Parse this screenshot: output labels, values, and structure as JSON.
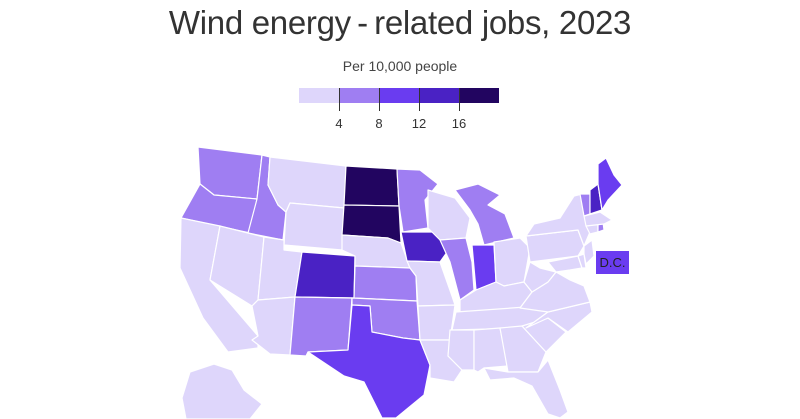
{
  "title": "Wind energy - related jobs, 2023",
  "subtitle": "Per 10,000 people",
  "colors": {
    "bin1": "#ded6fb",
    "bin2": "#9f7ef2",
    "bin3": "#6a3cf0",
    "bin4": "#4a22c4",
    "bin5": "#220560"
  },
  "legend": {
    "tick_labels": [
      "4",
      "8",
      "12",
      "16"
    ],
    "thresholds": [
      4,
      8,
      12,
      16
    ]
  },
  "dc_label": "D.C.",
  "dc_bin": "bin3",
  "state_bins": {
    "WA": "bin2",
    "OR": "bin2",
    "ID": "bin2",
    "MT": "bin1",
    "WY": "bin1",
    "ND": "bin5",
    "SD": "bin5",
    "NE": "bin1",
    "KS": "bin2",
    "OK": "bin2",
    "TX": "bin3",
    "NM": "bin2",
    "CO": "bin4",
    "UT": "bin1",
    "NV": "bin1",
    "CA": "bin1",
    "AZ": "bin1",
    "MN": "bin2",
    "IA": "bin4",
    "MO": "bin1",
    "AR": "bin1",
    "LA": "bin1",
    "WI": "bin1",
    "IL": "bin2",
    "MI": "bin2",
    "IN": "bin3",
    "OH": "bin1",
    "KY": "bin1",
    "TN": "bin1",
    "MS": "bin1",
    "AL": "bin1",
    "GA": "bin1",
    "FL": "bin1",
    "SC": "bin1",
    "NC": "bin1",
    "VA": "bin1",
    "WV": "bin1",
    "PA": "bin1",
    "NY": "bin1",
    "VT": "bin2",
    "NH": "bin4",
    "ME": "bin3",
    "MA": "bin1",
    "CT": "bin1",
    "RI": "bin2",
    "NJ": "bin1",
    "DE": "bin1",
    "MD": "bin1",
    "AK": "bin1"
  }
}
